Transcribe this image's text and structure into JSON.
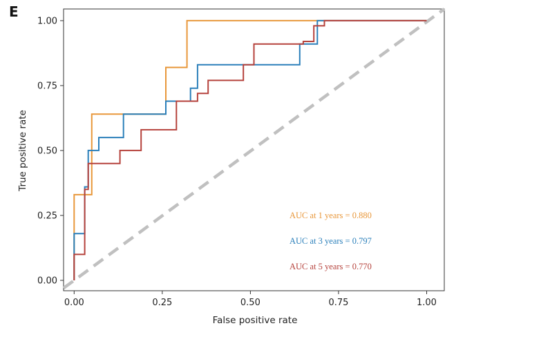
{
  "panel_label": "E",
  "chart_data": {
    "type": "line",
    "title": "",
    "xlabel": "False positive rate",
    "ylabel": "True positive rate",
    "xlim": [
      -0.03,
      1.05
    ],
    "ylim": [
      -0.04,
      1.045
    ],
    "xticks": [
      0,
      0.25,
      0.5,
      0.75,
      1
    ],
    "xtick_labels": [
      "0.00",
      "0.25",
      "0.50",
      "0.75",
      "1.00"
    ],
    "yticks": [
      0,
      0.25,
      0.5,
      0.75,
      1
    ],
    "ytick_labels": [
      "0.00",
      "0.25",
      "0.50",
      "0.75",
      "1.00"
    ],
    "grid": false,
    "legend_position": "bottom-right",
    "reference_line": {
      "x": [
        -0.03,
        1.05
      ],
      "y": [
        -0.03,
        1.045
      ],
      "style": "dashed",
      "color": "#c0c0c0"
    },
    "series": [
      {
        "name": "AUC at 1 years = 0.880",
        "color": "#e8973a",
        "x": [
          0,
          0,
          0.04,
          0.04,
          0.05,
          0.05,
          0.26,
          0.26,
          0.32,
          0.32,
          1.0
        ],
        "y": [
          0,
          0.33,
          0.33,
          0.33,
          0.33,
          0.64,
          0.64,
          0.82,
          0.82,
          1.0,
          1.0
        ]
      },
      {
        "name": "AUC at 3 years = 0.797",
        "color": "#2a7fba",
        "x": [
          0,
          0,
          0.03,
          0.03,
          0.04,
          0.04,
          0.07,
          0.07,
          0.14,
          0.14,
          0.26,
          0.26,
          0.33,
          0.33,
          0.35,
          0.35,
          0.64,
          0.64,
          0.69,
          0.69,
          1.0
        ],
        "y": [
          0,
          0.18,
          0.18,
          0.36,
          0.36,
          0.5,
          0.5,
          0.55,
          0.55,
          0.64,
          0.64,
          0.69,
          0.69,
          0.74,
          0.74,
          0.83,
          0.83,
          0.91,
          0.91,
          1.0,
          1.0
        ]
      },
      {
        "name": "AUC at 5 years = 0.770",
        "color": "#b5413b",
        "x": [
          0,
          0,
          0.03,
          0.03,
          0.04,
          0.04,
          0.13,
          0.13,
          0.19,
          0.19,
          0.29,
          0.29,
          0.35,
          0.35,
          0.38,
          0.38,
          0.48,
          0.48,
          0.51,
          0.51,
          0.65,
          0.65,
          0.68,
          0.68,
          0.71,
          0.71,
          1.0
        ],
        "y": [
          0,
          0.1,
          0.1,
          0.35,
          0.35,
          0.45,
          0.45,
          0.5,
          0.5,
          0.58,
          0.58,
          0.69,
          0.69,
          0.72,
          0.72,
          0.77,
          0.77,
          0.83,
          0.83,
          0.91,
          0.91,
          0.92,
          0.92,
          0.98,
          0.98,
          1.0,
          1.0
        ]
      }
    ]
  }
}
